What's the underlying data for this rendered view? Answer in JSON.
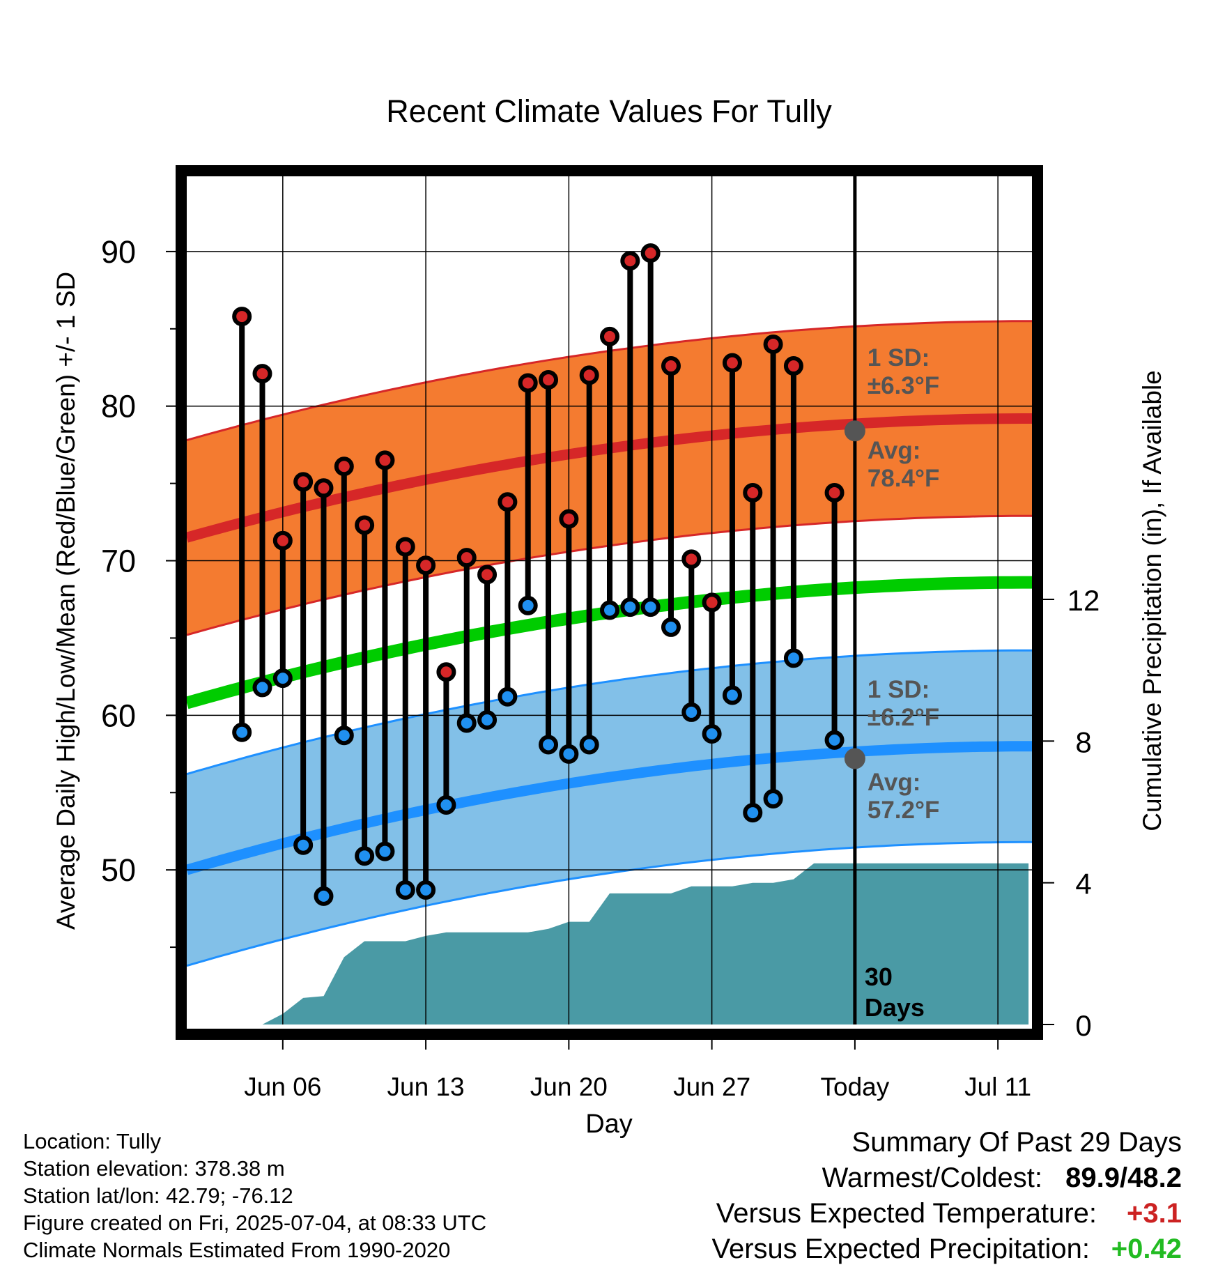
{
  "chart_data": {
    "type": "line",
    "title": "Recent Climate Values For Tully",
    "xlabel": "Day",
    "ylabel": "Average Daily High/Low/Mean (Red/Blue/Green) +/- 1 SD",
    "y2label": "Cumulative Precipitation (in), If Available",
    "ylim": [
      40,
      95
    ],
    "y2lim": [
      0,
      24
    ],
    "xlim": [
      -4.7,
      36.7
    ],
    "x_ticks": [
      {
        "day": 0,
        "label": "Jun 06"
      },
      {
        "day": 7,
        "label": "Jun 13"
      },
      {
        "day": 14,
        "label": "Jun 20"
      },
      {
        "day": 21,
        "label": "Jun 27"
      },
      {
        "day": 28,
        "label": "Today"
      },
      {
        "day": 35,
        "label": "Jul 11"
      }
    ],
    "y_ticks": [
      50,
      60,
      70,
      80,
      90
    ],
    "y2_ticks": [
      0,
      4,
      8,
      12
    ],
    "grid": true,
    "today_day": 28,
    "today_label": [
      "30",
      "Days"
    ],
    "days": [
      -2,
      -1,
      0,
      1,
      2,
      3,
      4,
      5,
      6,
      7,
      8,
      9,
      10,
      11,
      12,
      13,
      14,
      15,
      16,
      17,
      18,
      19,
      20,
      21,
      22,
      23,
      24,
      25,
      26,
      27
    ],
    "daily_high": [
      85.8,
      82.1,
      71.3,
      75.1,
      74.7,
      76.1,
      72.3,
      76.5,
      70.9,
      69.7,
      62.8,
      70.2,
      69.1,
      73.8,
      81.5,
      81.7,
      72.7,
      82.0,
      84.5,
      89.4,
      89.9,
      82.6,
      70.1,
      67.3,
      82.8,
      74.4,
      84.0,
      82.6,
      null,
      74.4
    ],
    "daily_low": [
      58.9,
      61.8,
      62.4,
      51.6,
      48.3,
      58.7,
      50.9,
      51.2,
      48.7,
      48.7,
      54.2,
      59.5,
      59.7,
      61.2,
      67.1,
      58.1,
      57.5,
      58.1,
      66.8,
      67.0,
      67.0,
      65.7,
      60.2,
      58.8,
      61.3,
      53.7,
      54.6,
      63.7,
      null,
      58.4
    ],
    "avg_high": {
      "label_lines": [
        "Avg:",
        "78.4°F"
      ],
      "at_today": 78.4,
      "start": 71.5,
      "end": 79.2
    },
    "avg_low": {
      "label_lines": [
        "Avg:",
        "57.2°F"
      ],
      "at_today": 57.2,
      "start": 50.0,
      "end": 58.0
    },
    "avg_mean": {
      "start": 60.8,
      "end": 68.6
    },
    "sd_high": {
      "label_lines": [
        "1 SD:",
        "±6.3°F"
      ],
      "value": 6.3
    },
    "sd_low": {
      "label_lines": [
        "1 SD:",
        "±6.2°F"
      ],
      "value": 6.2
    },
    "precip_cumulative": {
      "days": [
        -3,
        -1,
        0,
        1,
        2,
        3,
        4,
        5,
        6,
        7,
        8,
        9,
        10,
        11,
        12,
        13,
        14,
        15,
        16,
        17,
        18,
        19,
        20,
        21,
        22,
        23,
        24,
        25,
        26,
        27,
        28,
        36.5
      ],
      "values": [
        0,
        0,
        0.3,
        0.75,
        0.8,
        1.9,
        2.35,
        2.35,
        2.35,
        2.5,
        2.6,
        2.6,
        2.6,
        2.6,
        2.6,
        2.7,
        2.9,
        2.9,
        3.7,
        3.7,
        3.7,
        3.7,
        3.9,
        3.9,
        3.9,
        4.0,
        4.0,
        4.1,
        4.55,
        4.55,
        4.55,
        4.55
      ]
    },
    "colors": {
      "high_band": "#f47b30",
      "high_avg": "#d62728",
      "low_band": "#82c0e8",
      "low_avg": "#1e90ff",
      "mean_avg": "#00cc00",
      "precip": "#4a9aa5",
      "high_marker": "#d62728",
      "low_marker": "#2090f0",
      "sd_text": "#555555"
    }
  },
  "footer": {
    "location": "Location: Tully",
    "elevation": "Station elevation: 378.38 m",
    "latlon": "Station lat/lon: 42.79; -76.12",
    "created": "Figure created on Fri, 2025-07-04, at 08:33 UTC",
    "normals": "Climate Normals Estimated From 1990-2020"
  },
  "summary": {
    "title": "Summary Of Past 29 Days",
    "warm_cold_label": "Warmest/Coldest:",
    "warm_cold_value": "89.9/48.2",
    "temp_label": "Versus Expected Temperature:",
    "temp_value": "+3.1",
    "precip_label": "Versus Expected Precipitation:",
    "precip_value": "+0.42"
  }
}
